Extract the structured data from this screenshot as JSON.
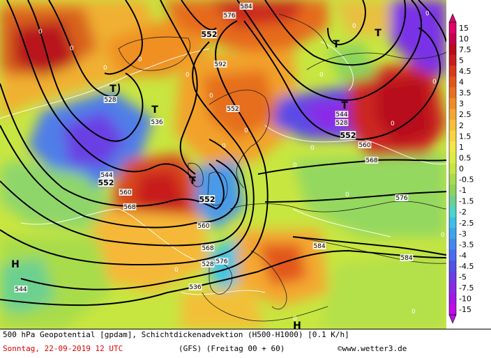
{
  "footer": {
    "description": "500 hPa Geopotential [gpdam], Schichtdickenadvektion (H500-H1000) [0.1 K/h]",
    "date_line": "Sonntag, 22-09-2019  12 UTC",
    "model_line": "(GFS)  (Freitag 00 + 60)",
    "copyright": "©www.wetter3.de"
  },
  "legend": {
    "levels": [
      "15",
      "10",
      "7.5",
      "5",
      "4.5",
      "4",
      "3.5",
      "3",
      "2.5",
      "2",
      "1.5",
      "1",
      "0.5",
      "0",
      "-0.5",
      "-1",
      "-1.5",
      "-2",
      "-2.5",
      "-3",
      "-3.5",
      "-4",
      "-4.5",
      "-5",
      "-7.5",
      "-10",
      "-15"
    ],
    "colors": [
      "#e0006a",
      "#c4004e",
      "#b70c1c",
      "#c81e1e",
      "#d83a1a",
      "#e2561a",
      "#e97020",
      "#f08c28",
      "#f4a830",
      "#f7c038",
      "#f8d440",
      "#f4e648",
      "#dcec44",
      "#c8e640",
      "#a8dc4c",
      "#8cd45c",
      "#6cd090",
      "#4ed4c8",
      "#3cc0e8",
      "#3ea4ee",
      "#4488ee",
      "#4a6cee",
      "#5252e6",
      "#6a3ee4",
      "#8a2ae6",
      "#a416e8",
      "#c00ce8"
    ]
  },
  "map_labels": {
    "lows": [
      "T",
      "T",
      "T",
      "T",
      "T",
      "T"
    ],
    "highs": [
      "H",
      "H"
    ],
    "contours": [
      "552",
      "528",
      "536",
      "544",
      "552",
      "560",
      "568",
      "576",
      "584",
      "592",
      "552",
      "528",
      "536",
      "544",
      "552",
      "560",
      "568",
      "576",
      "584",
      "544",
      "528",
      "552",
      "584",
      "560",
      "568",
      "576"
    ],
    "zero_marks": [
      "0",
      "0",
      "0",
      "0",
      "0",
      "0",
      "0",
      "0",
      "0",
      "0",
      "0",
      "0",
      "0",
      "0",
      "0",
      "0",
      "0",
      "0",
      "0",
      "0"
    ]
  }
}
